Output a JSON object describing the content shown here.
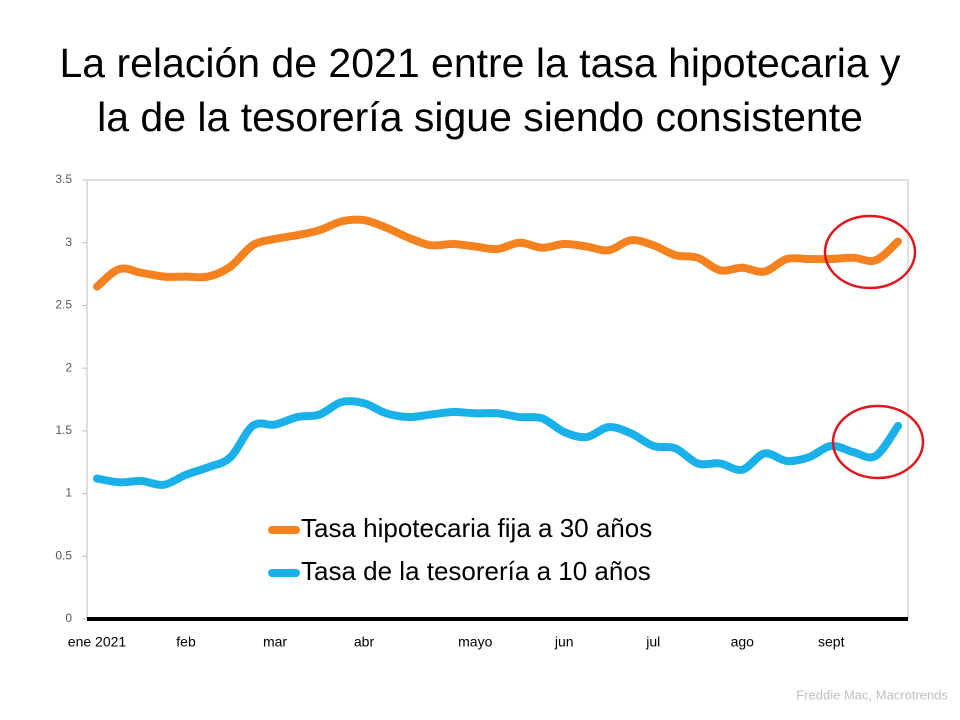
{
  "chart_data": {
    "type": "line",
    "title": [
      "La relación de 2021 entre la tasa hipotecaria y",
      "la de la tesorería sigue siendo consistente"
    ],
    "categories": [
      "ene 2021",
      null,
      null,
      null,
      "feb",
      null,
      null,
      null,
      "mar",
      null,
      null,
      null,
      "abr",
      null,
      null,
      null,
      null,
      "mayo",
      null,
      null,
      null,
      "jun",
      null,
      null,
      null,
      "jul",
      null,
      null,
      null,
      "ago",
      null,
      null,
      null,
      "sept",
      null,
      null,
      null
    ],
    "series": [
      {
        "name": "Tasa hipotecaria fija a 30 años",
        "color": "#f5821f",
        "values": [
          2.65,
          2.79,
          2.76,
          2.73,
          2.73,
          2.73,
          2.81,
          2.98,
          3.03,
          3.06,
          3.1,
          3.17,
          3.18,
          3.12,
          3.04,
          2.98,
          2.99,
          2.97,
          2.95,
          3.0,
          2.96,
          2.99,
          2.97,
          2.94,
          3.02,
          2.98,
          2.9,
          2.88,
          2.78,
          2.8,
          2.77,
          2.87,
          2.87,
          2.87,
          2.88,
          2.86,
          3.01
        ]
      },
      {
        "name": "Tasa de la tesorería a 10 años",
        "color": "#1ab0ea",
        "values": [
          1.12,
          1.09,
          1.1,
          1.07,
          1.15,
          1.21,
          1.29,
          1.54,
          1.55,
          1.61,
          1.63,
          1.73,
          1.72,
          1.64,
          1.61,
          1.63,
          1.65,
          1.64,
          1.64,
          1.61,
          1.6,
          1.49,
          1.45,
          1.53,
          1.48,
          1.38,
          1.36,
          1.24,
          1.24,
          1.19,
          1.32,
          1.26,
          1.29,
          1.38,
          1.33,
          1.3,
          1.54
        ]
      }
    ],
    "ylim": [
      0,
      3.5
    ],
    "yticks": [
      0,
      0.5,
      1,
      1.5,
      2,
      2.5,
      3,
      3.5
    ],
    "grid": false,
    "source": "Freddie Mac, Macrotrends"
  }
}
